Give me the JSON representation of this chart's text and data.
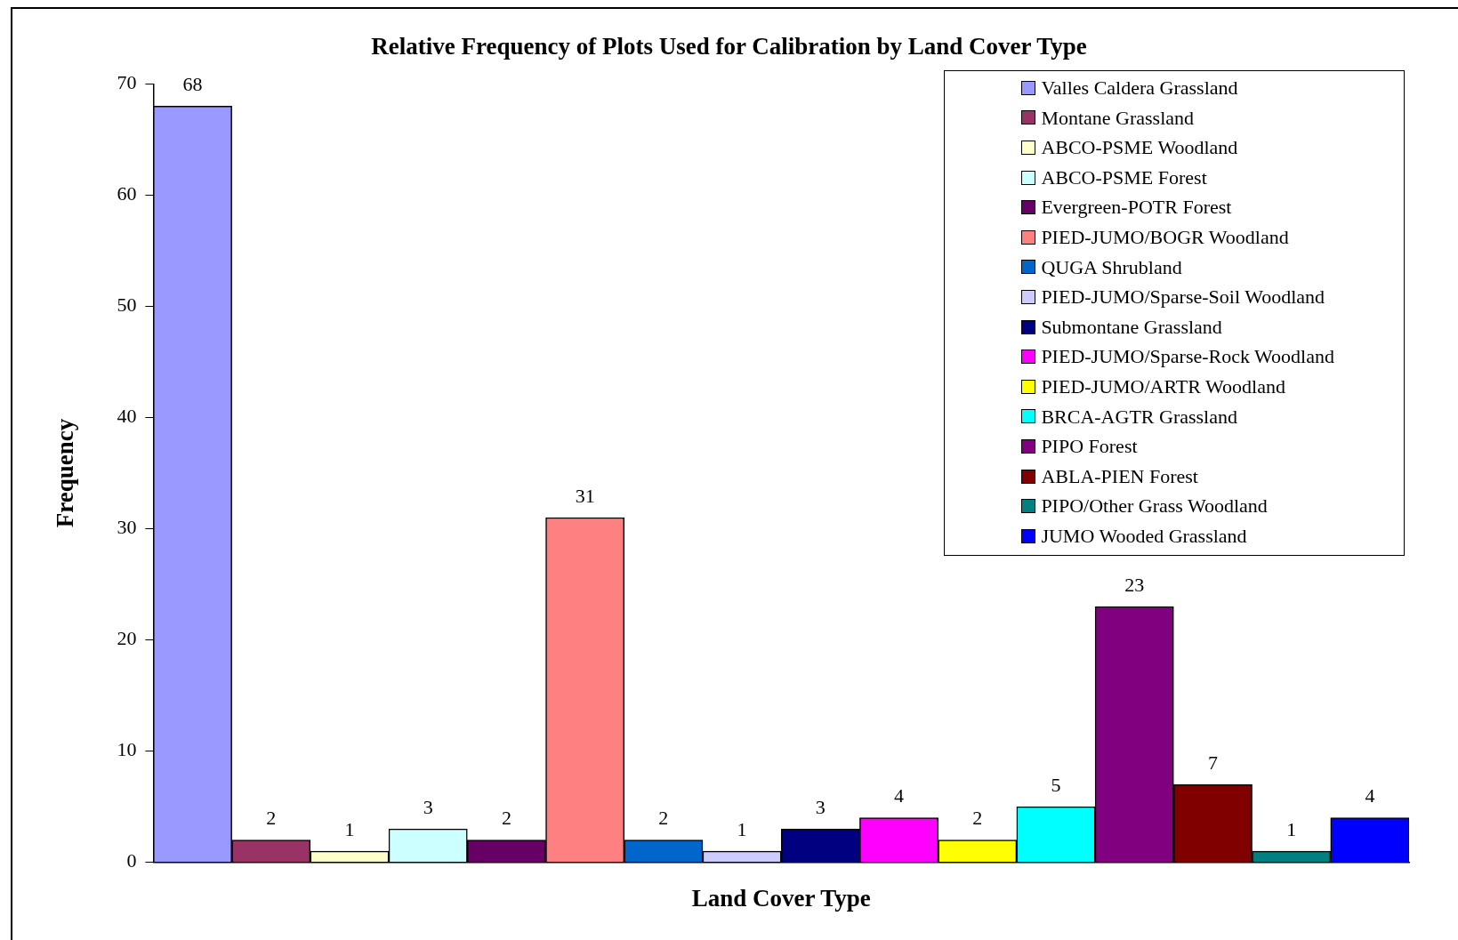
{
  "chart_data": {
    "type": "bar",
    "title": "Relative Frequency of Plots Used for Calibration by Land Cover Type",
    "xlabel": "Land Cover Type",
    "ylabel": "Frequency",
    "categories": [
      null
    ],
    "series": [
      {
        "name": "Valles Caldera Grassland",
        "color": "#9999ff",
        "values": [
          68
        ]
      },
      {
        "name": "Montane Grassland",
        "color": "#993366",
        "values": [
          2
        ]
      },
      {
        "name": "ABCO-PSME Woodland",
        "color": "#ffffcc",
        "values": [
          1
        ]
      },
      {
        "name": "ABCO-PSME Forest",
        "color": "#ccffff",
        "values": [
          3
        ]
      },
      {
        "name": "Evergreen-POTR Forest",
        "color": "#660066",
        "values": [
          2
        ]
      },
      {
        "name": "PIED-JUMO/BOGR Woodland",
        "color": "#ff8080",
        "values": [
          31
        ]
      },
      {
        "name": "QUGA Shrubland",
        "color": "#0066cc",
        "values": [
          2
        ]
      },
      {
        "name": "PIED-JUMO/Sparse-Soil Woodland",
        "color": "#ccccff",
        "values": [
          1
        ]
      },
      {
        "name": "Submontane Grassland",
        "color": "#000080",
        "values": [
          3
        ]
      },
      {
        "name": "PIED-JUMO/Sparse-Rock Woodland",
        "color": "#ff00ff",
        "values": [
          4
        ]
      },
      {
        "name": "PIED-JUMO/ARTR Woodland",
        "color": "#ffff00",
        "values": [
          2
        ]
      },
      {
        "name": "BRCA-AGTR Grassland",
        "color": "#00ffff",
        "values": [
          5
        ]
      },
      {
        "name": "PIPO Forest",
        "color": "#800080",
        "values": [
          23
        ]
      },
      {
        "name": "ABLA-PIEN Forest",
        "color": "#800000",
        "values": [
          7
        ]
      },
      {
        "name": "PIPO/Other Grass Woodland",
        "color": "#008080",
        "values": [
          1
        ]
      },
      {
        "name": "JUMO Wooded Grassland",
        "color": "#0000ff",
        "values": [
          4
        ]
      }
    ],
    "ylim": [
      0,
      70
    ],
    "yticks": [
      0,
      10,
      20,
      30,
      40,
      50,
      60,
      70
    ],
    "grid": false,
    "legend": "top right",
    "tick_labels": "y",
    "data_labels": true
  }
}
